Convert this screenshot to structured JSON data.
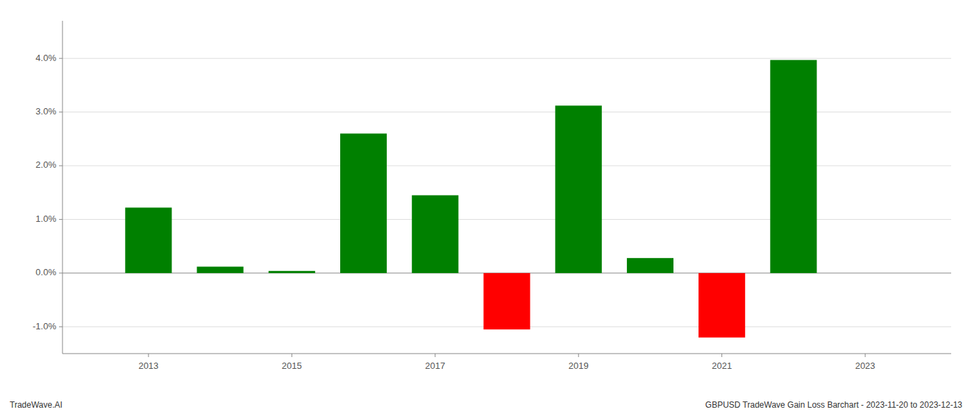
{
  "chart_data": {
    "type": "bar",
    "title": "GBPUSD TradeWave Gain Loss Barchart - 2023-11-20 to 2023-12-13",
    "annotations": [
      "TradeWave.AI"
    ],
    "x": [
      2013,
      2014,
      2015,
      2016,
      2017,
      2018,
      2019,
      2020,
      2021,
      2022
    ],
    "values": [
      0.0122,
      0.0012,
      0.0004,
      0.026,
      0.0145,
      -0.0105,
      0.0312,
      0.0028,
      -0.012,
      0.0397
    ],
    "colors": [
      "#008000",
      "#008000",
      "#008000",
      "#008000",
      "#008000",
      "#ff0000",
      "#008000",
      "#008000",
      "#ff0000",
      "#008000"
    ],
    "xlim": [
      2011.8,
      2024.2
    ],
    "xticks": [
      2013,
      2015,
      2017,
      2019,
      2021,
      2023
    ],
    "ylim": [
      -0.015,
      0.047
    ],
    "yticks": [
      {
        "value": -0.01,
        "label": "-1.0%"
      },
      {
        "value": 0.0,
        "label": "0.0%"
      },
      {
        "value": 0.01,
        "label": "1.0%"
      },
      {
        "value": 0.02,
        "label": "2.0%"
      },
      {
        "value": 0.03,
        "label": "3.0%"
      },
      {
        "value": 0.04,
        "label": "4.0%"
      }
    ],
    "grid": true
  }
}
